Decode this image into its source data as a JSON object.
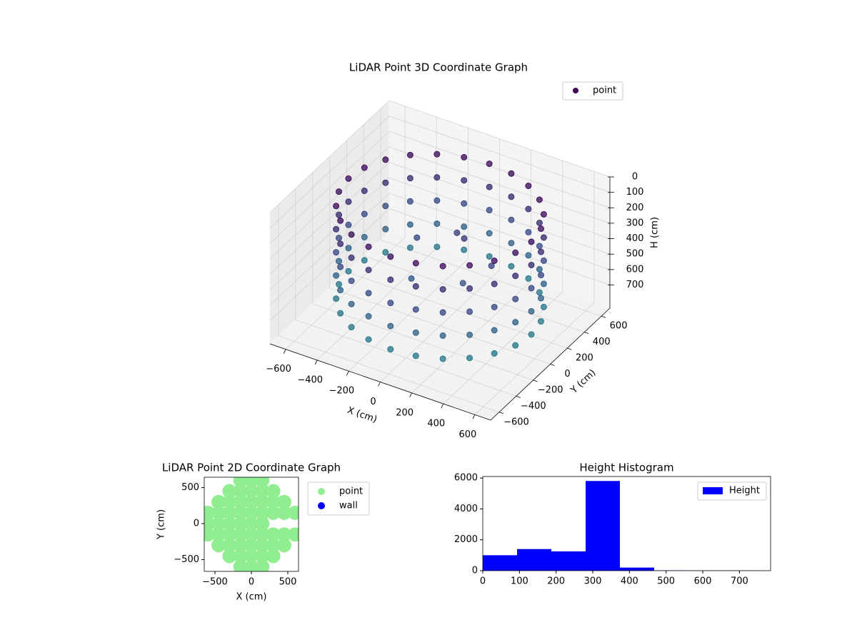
{
  "chart_data": [
    {
      "type": "scatter3d",
      "title": "LiDAR Point 3D Coordinate Graph",
      "xlabel": "X (cm)",
      "ylabel": "Y (cm)",
      "zlabel": "H (cm)",
      "xlim": [
        -700,
        700
      ],
      "ylim": [
        -700,
        700
      ],
      "zlim": [
        0,
        850
      ],
      "zaxis_inverted": true,
      "xticks": [
        {
          "value": -600,
          "label": "−600"
        },
        {
          "value": -400,
          "label": "−400"
        },
        {
          "value": -200,
          "label": "−200"
        },
        0,
        200,
        400,
        600
      ],
      "yticks": [
        {
          "value": -600,
          "label": "−600"
        },
        {
          "value": -400,
          "label": "−400"
        },
        {
          "value": -200,
          "label": "−200"
        },
        0,
        200,
        400,
        600
      ],
      "zticks": [
        0,
        100,
        200,
        300,
        400,
        500,
        600,
        700
      ],
      "grid": true,
      "legend": "upper right",
      "colormap": [
        "#440154",
        "#3b528b",
        "#21918c"
      ],
      "series": [
        {
          "name": "point",
          "color": "#440154",
          "x": [
            580,
            560,
            502,
            410,
            290,
            150,
            0,
            -150,
            -290,
            -410,
            -502,
            -560,
            -580,
            -560,
            -502,
            -410,
            -290,
            -150,
            0,
            150,
            290,
            410,
            502,
            560,
            580,
            560,
            502,
            410,
            290,
            150,
            0,
            -150,
            -290,
            -410,
            -502,
            -560,
            -580,
            -560,
            -502,
            -410,
            -290,
            -150,
            0,
            150,
            290,
            410,
            502,
            560,
            580,
            560,
            502,
            410,
            290,
            150,
            0,
            -150,
            -290,
            -410,
            -502,
            -560,
            -580,
            -560,
            -502,
            -410,
            -290,
            -150,
            0,
            150,
            290,
            410,
            502,
            560,
            580,
            560,
            502,
            410,
            290,
            150,
            0,
            -150,
            -290,
            -410,
            -502,
            -560,
            -580,
            -560,
            -502,
            -410,
            -290,
            -150,
            0,
            150,
            290,
            410,
            502,
            560,
            580,
            560,
            502,
            410,
            290,
            150,
            0,
            -150,
            -290,
            -410,
            -502,
            -560,
            -580,
            -560,
            -502,
            -410,
            -290,
            -150,
            0,
            150,
            290,
            410,
            502,
            560,
            100,
            0,
            -200,
            200,
            -100,
            300
          ],
          "y": [
            0,
            150,
            290,
            410,
            502,
            560,
            580,
            560,
            502,
            410,
            290,
            150,
            0,
            -150,
            -290,
            -410,
            -502,
            -560,
            -580,
            -560,
            -502,
            -410,
            -290,
            -150,
            0,
            150,
            290,
            410,
            502,
            560,
            580,
            560,
            502,
            410,
            290,
            150,
            0,
            -150,
            -290,
            -410,
            -502,
            -560,
            -580,
            -560,
            -502,
            -410,
            -290,
            -150,
            0,
            150,
            290,
            410,
            502,
            560,
            580,
            560,
            502,
            410,
            290,
            150,
            0,
            -150,
            -290,
            -410,
            -502,
            -560,
            -580,
            -560,
            -502,
            -410,
            -290,
            -150,
            0,
            150,
            290,
            410,
            502,
            560,
            580,
            560,
            502,
            410,
            290,
            150,
            0,
            -150,
            -290,
            -410,
            -502,
            -560,
            -580,
            -560,
            -502,
            -410,
            -290,
            -150,
            0,
            150,
            290,
            410,
            502,
            560,
            580,
            560,
            502,
            410,
            290,
            150,
            0,
            -150,
            -290,
            -410,
            -502,
            -560,
            -580,
            -560,
            -502,
            -410,
            -290,
            -150,
            100,
            200,
            100,
            -100,
            -150,
            50
          ],
          "z": [
            100,
            100,
            100,
            100,
            100,
            100,
            100,
            100,
            100,
            100,
            100,
            100,
            100,
            100,
            100,
            100,
            100,
            100,
            100,
            100,
            100,
            100,
            100,
            100,
            250,
            250,
            250,
            250,
            250,
            250,
            250,
            250,
            250,
            250,
            250,
            250,
            250,
            250,
            250,
            250,
            250,
            250,
            250,
            250,
            250,
            250,
            250,
            250,
            400,
            400,
            400,
            400,
            400,
            400,
            400,
            400,
            400,
            400,
            400,
            400,
            400,
            400,
            400,
            400,
            400,
            400,
            400,
            400,
            400,
            400,
            400,
            400,
            550,
            550,
            550,
            550,
            550,
            550,
            550,
            550,
            550,
            550,
            550,
            550,
            550,
            550,
            550,
            550,
            550,
            550,
            550,
            550,
            550,
            550,
            550,
            550,
            700,
            700,
            700,
            700,
            700,
            700,
            700,
            700,
            700,
            700,
            700,
            700,
            700,
            700,
            700,
            700,
            700,
            700,
            700,
            700,
            700,
            700,
            700,
            700,
            300,
            350,
            400,
            450,
            500,
            380
          ]
        }
      ]
    },
    {
      "type": "scatter",
      "title": "LiDAR Point 2D Coordinate Graph",
      "xlabel": "X (cm)",
      "ylabel": "Y (cm)",
      "xlim": [
        -647,
        647
      ],
      "ylim": [
        -663,
        644
      ],
      "xticks": [
        {
          "value": -500,
          "label": "−500"
        },
        0,
        500
      ],
      "yticks": [
        {
          "value": -500,
          "label": "−500"
        },
        0,
        500
      ],
      "legend": "outside upper right",
      "series": [
        {
          "name": "point",
          "color": "#90ee90",
          "x": [
            -150,
            0,
            150,
            -300,
            -150,
            0,
            150,
            300,
            -450,
            -300,
            -150,
            0,
            150,
            300,
            450,
            -600,
            -450,
            -300,
            -150,
            0,
            150,
            300,
            450,
            600,
            -600,
            -450,
            -300,
            -150,
            0,
            150,
            -600,
            -450,
            -300,
            -150,
            0,
            150,
            300,
            450,
            600,
            -450,
            -300,
            -150,
            0,
            150,
            300,
            450,
            -300,
            -150,
            0,
            150,
            300,
            -150,
            0,
            150
          ],
          "values": [
            -600,
            -600,
            -600,
            -450,
            -450,
            -450,
            -450,
            -450,
            -300,
            -300,
            -300,
            -300,
            -300,
            -300,
            -300,
            -150,
            -150,
            -150,
            -150,
            -150,
            -150,
            -150,
            -150,
            -150,
            0,
            0,
            0,
            0,
            0,
            0,
            150,
            150,
            150,
            150,
            150,
            150,
            150,
            150,
            150,
            300,
            300,
            300,
            300,
            300,
            300,
            300,
            450,
            450,
            450,
            450,
            450,
            600,
            600,
            600
          ]
        },
        {
          "name": "wall",
          "color": "#0000ff",
          "x": [],
          "values": []
        }
      ]
    },
    {
      "type": "histogram",
      "title": "Height Histogram",
      "xlim": [
        0,
        785
      ],
      "ylim": [
        0,
        6100
      ],
      "xticks": [
        0,
        100,
        200,
        300,
        400,
        500,
        600,
        700
      ],
      "yticks": [
        0,
        2000,
        4000,
        6000
      ],
      "legend": "upper right",
      "series": [
        {
          "name": "Height",
          "color": "#0000ff",
          "bins": [
            0,
            93.5,
            187,
            280.5,
            374,
            467.5,
            561,
            654.5,
            748
          ],
          "values": [
            1000,
            1400,
            1250,
            5810,
            200,
            15,
            10,
            10
          ]
        }
      ]
    }
  ]
}
